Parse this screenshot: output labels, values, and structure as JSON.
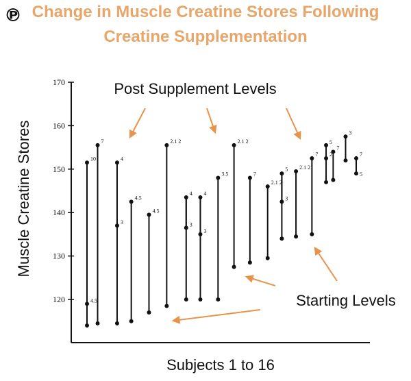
{
  "header": {
    "pin_glyph": "℗",
    "title_line1": "Change in Muscle Creatine Stores Following",
    "title_line2": "Creatine Supplementation"
  },
  "colors": {
    "title": "#e8a66a",
    "arrow": "#e8934a",
    "ink": "#111111"
  },
  "chart_data": {
    "type": "dumbbell",
    "title": "Change in Muscle Creatine Stores Following Creatine Supplementation",
    "xlabel": "Subjects 1 to 16",
    "ylabel": "Muscle Creatine Stores",
    "ylim": [
      110,
      170
    ],
    "yticks": [
      120,
      130,
      140,
      150,
      160,
      170
    ],
    "annotations": {
      "post": "Post Supplement Levels",
      "start": "Starting Levels"
    },
    "subjects": [
      {
        "x": 1,
        "start": 114,
        "mid": 119,
        "post": 151.5,
        "post_label": "10",
        "mid_label": "4.5"
      },
      {
        "x": 1.6,
        "start": 114.5,
        "post": 155.5,
        "post_label": "7"
      },
      {
        "x": 2.7,
        "start": 114.5,
        "mid": 137,
        "post": 151.5,
        "post_label": "4",
        "mid_label": "3"
      },
      {
        "x": 3.5,
        "start": 115,
        "post": 142.5,
        "post_label": "4.5"
      },
      {
        "x": 4.5,
        "start": 117,
        "post": 139.5,
        "post_label": "4.5"
      },
      {
        "x": 5.5,
        "start": 118.5,
        "post": 155.5,
        "post_label": "2.1 2"
      },
      {
        "x": 6.6,
        "start": 120,
        "mid": 136.5,
        "post": 143.5,
        "post_label": "4",
        "mid_label": "3"
      },
      {
        "x": 7.4,
        "start": 120,
        "mid": 135,
        "post": 143.5,
        "post_label": "4",
        "mid_label": "3"
      },
      {
        "x": 8.4,
        "start": 120,
        "post": 148,
        "post_label": "3.5"
      },
      {
        "x": 9.3,
        "start": 127.5,
        "post": 155.5,
        "post_label": "2.1 2"
      },
      {
        "x": 10.2,
        "start": 128.5,
        "post": 148,
        "post_label": "7"
      },
      {
        "x": 11.2,
        "start": 129.5,
        "post": 146,
        "post_label": "2.1 2"
      },
      {
        "x": 12.0,
        "start": 134,
        "mid": 142.5,
        "post": 149,
        "post_label": "5",
        "mid_label": "3"
      },
      {
        "x": 12.8,
        "start": 134.5,
        "post": 149.5,
        "post_label": "2.1 2"
      },
      {
        "x": 13.7,
        "start": 135,
        "post": 152.5,
        "post_label": "7"
      },
      {
        "x": 14.5,
        "start": 147,
        "post": 152.5,
        "mid": 155.5,
        "post_label": "2",
        "mid_label": "5"
      },
      {
        "x": 14.9,
        "start": 147.5,
        "post": 154,
        "post_label": "7"
      },
      {
        "x": 15.6,
        "start": 152,
        "post": 157.5,
        "post_label": "3"
      },
      {
        "x": 16.2,
        "start": 149,
        "post": 152.5,
        "post_label": "7",
        "start_label": "5"
      }
    ]
  }
}
